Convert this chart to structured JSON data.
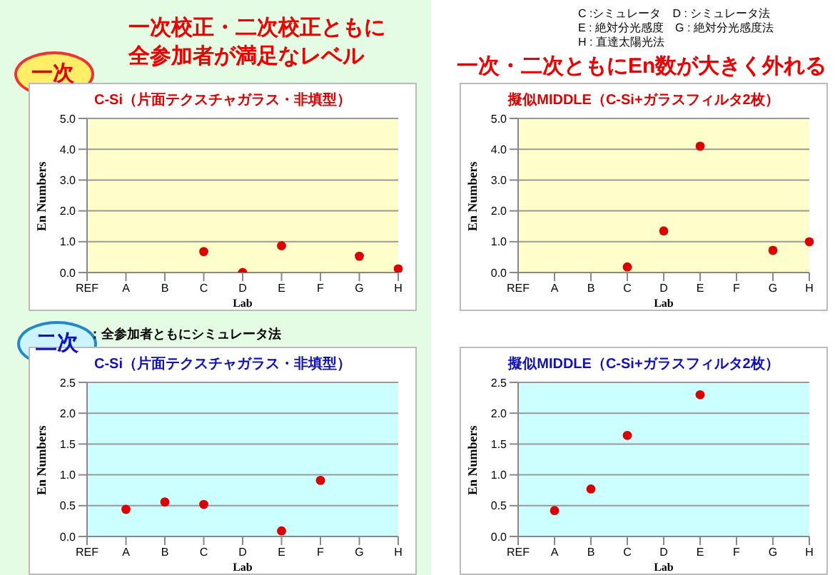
{
  "chart_data": [
    {
      "type": "scatter",
      "title": "C-Si（片面テクスチャガラス・非填型）",
      "xlabel": "Lab",
      "ylabel": "En Numbers",
      "categories": [
        "REF",
        "A",
        "B",
        "C",
        "D",
        "E",
        "F",
        "G",
        "H"
      ],
      "series": [
        {
          "color": "#dd0000",
          "values": [
            null,
            null,
            null,
            0.68,
            0.0,
            0.87,
            null,
            0.53,
            0.12
          ]
        }
      ],
      "ylim": [
        0,
        5
      ],
      "yticks": [
        {
          "value": 0,
          "label": "0.0"
        },
        {
          "value": 1,
          "label": "1.0"
        },
        {
          "value": 2,
          "label": "2.0"
        },
        {
          "value": 3,
          "label": "3.0"
        },
        {
          "value": 4,
          "label": "4.0"
        },
        {
          "value": 5,
          "label": "5.0"
        }
      ],
      "grid": "y",
      "marker": "circle",
      "annotations": [
        "一次校正・二次校正ともに",
        "全参加者が満足なレベル",
        "一次"
      ]
    },
    {
      "type": "scatter",
      "title": "擬似MIDDLE（C-Si+ガラスフィルタ2枚）",
      "xlabel": "Lab",
      "ylabel": "En Numbers",
      "categories": [
        "REF",
        "A",
        "B",
        "C",
        "D",
        "E",
        "F",
        "G",
        "H"
      ],
      "series": [
        {
          "color": "#dd0000",
          "values": [
            null,
            null,
            null,
            0.18,
            1.35,
            4.1,
            null,
            0.72,
            1.0
          ]
        }
      ],
      "ylim": [
        0,
        5
      ],
      "yticks": [
        {
          "value": 0,
          "label": "0.0"
        },
        {
          "value": 1,
          "label": "1.0"
        },
        {
          "value": 2,
          "label": "2.0"
        },
        {
          "value": 3,
          "label": "3.0"
        },
        {
          "value": 4,
          "label": "4.0"
        },
        {
          "value": 5,
          "label": "5.0"
        }
      ],
      "grid": "y",
      "marker": "circle",
      "annotations": [
        "C :シミュレータ　D : シミュレータ法",
        "E : 絶対分光感度　G : 絶対分光感度法",
        "H : 直達太陽光法",
        "一次・二次ともにEn数が大きく外れる"
      ]
    },
    {
      "type": "scatter",
      "title": "C-Si（片面テクスチャガラス・非填型）",
      "xlabel": "Lab",
      "ylabel": "En Numbers",
      "categories": [
        "REF",
        "A",
        "B",
        "C",
        "D",
        "E",
        "F",
        "G",
        "H"
      ],
      "series": [
        {
          "color": "#dd0000",
          "values": [
            null,
            0.44,
            0.56,
            0.52,
            null,
            0.09,
            0.91,
            null,
            null
          ]
        }
      ],
      "ylim": [
        0,
        2.5
      ],
      "yticks": [
        {
          "value": 0,
          "label": "0.0"
        },
        {
          "value": 0.5,
          "label": "0.5"
        },
        {
          "value": 1,
          "label": "1.0"
        },
        {
          "value": 1.5,
          "label": "1.5"
        },
        {
          "value": 2,
          "label": "2.0"
        },
        {
          "value": 2.5,
          "label": "2.5"
        }
      ],
      "grid": "y",
      "marker": "circle",
      "annotations": [
        "二次",
        "：全参加者ともにシミュレータ法"
      ]
    },
    {
      "type": "scatter",
      "title": "擬似MIDDLE（C-Si+ガラスフィルタ2枚）",
      "xlabel": "Lab",
      "ylabel": "En Numbers",
      "categories": [
        "REF",
        "A",
        "B",
        "C",
        "D",
        "E",
        "F",
        "G",
        "H"
      ],
      "series": [
        {
          "color": "#dd0000",
          "values": [
            null,
            0.42,
            0.77,
            1.64,
            null,
            2.3,
            null,
            null,
            null
          ]
        }
      ],
      "ylim": [
        0,
        2.5
      ],
      "yticks": [
        {
          "value": 0,
          "label": "0.0"
        },
        {
          "value": 0.5,
          "label": "0.5"
        },
        {
          "value": 1,
          "label": "1.0"
        },
        {
          "value": 1.5,
          "label": "1.5"
        },
        {
          "value": 2,
          "label": "2.0"
        },
        {
          "value": 2.5,
          "label": "2.5"
        }
      ],
      "grid": "y",
      "marker": "circle"
    }
  ]
}
